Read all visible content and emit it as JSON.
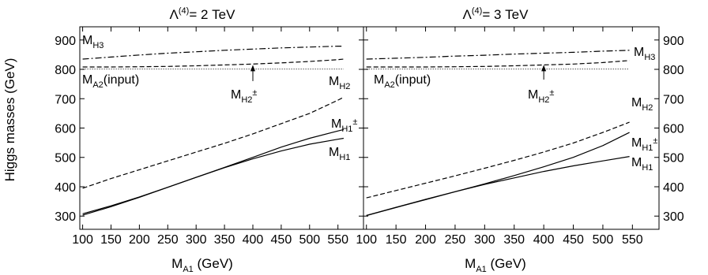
{
  "chart_data": [
    {
      "type": "line",
      "title": "Λ(4)= 2 TeV",
      "title_parts": {
        "symbol": "Λ",
        "superscript": "(4)",
        "value": "= 2 TeV"
      },
      "xlabel": "MA1 (GeV)",
      "xlabel_parts": {
        "main": "M",
        "sub": "A1",
        "rest": " (GeV)"
      },
      "ylabel": "Higgs masses (GeV)",
      "xlim": [
        95,
        595
      ],
      "ylim": [
        255,
        945
      ],
      "xticks": [
        100,
        150,
        200,
        250,
        300,
        350,
        400,
        450,
        500,
        550
      ],
      "yticks": [
        300,
        400,
        500,
        600,
        700,
        800,
        900
      ],
      "y_tick_labels_side": "left",
      "series": [
        {
          "name": "MH3",
          "style": "dashdot",
          "x": [
            100,
            150,
            200,
            250,
            300,
            350,
            400,
            450,
            500,
            550,
            560
          ],
          "y": [
            835,
            842,
            849,
            855,
            860,
            865,
            869,
            873,
            876,
            879,
            879
          ]
        },
        {
          "name": "MA2(input)",
          "style": "dotted",
          "x": [
            100,
            560
          ],
          "y": [
            801,
            801
          ]
        },
        {
          "name": "MH2±",
          "style": "dashed",
          "x": [
            100,
            150,
            200,
            250,
            300,
            350,
            400,
            450,
            500,
            550,
            560
          ],
          "y": [
            808,
            808,
            809,
            810,
            812,
            815,
            818,
            822,
            827,
            833,
            835
          ]
        },
        {
          "name": "MH2",
          "style": "dashed",
          "x": [
            100,
            150,
            200,
            250,
            300,
            350,
            400,
            450,
            500,
            550,
            560
          ],
          "y": [
            395,
            428,
            458,
            488,
            518,
            548,
            580,
            615,
            650,
            695,
            705
          ]
        },
        {
          "name": "MH1±",
          "style": "solid",
          "x": [
            100,
            150,
            200,
            250,
            300,
            350,
            400,
            450,
            500,
            550,
            560
          ],
          "y": [
            308,
            335,
            365,
            398,
            432,
            466,
            500,
            535,
            565,
            590,
            595
          ]
        },
        {
          "name": "MH1",
          "style": "solid",
          "x": [
            100,
            150,
            200,
            250,
            300,
            350,
            400,
            450,
            500,
            550,
            560
          ],
          "y": [
            303,
            332,
            364,
            398,
            432,
            465,
            495,
            522,
            545,
            562,
            565
          ]
        }
      ],
      "annotations": [
        {
          "text": "MH3",
          "main": "M",
          "sub": "H3",
          "sup": ""
        },
        {
          "text": "MA2(input)",
          "main": "M",
          "sub": "A2",
          "rest": "(input)",
          "sup": ""
        },
        {
          "text": "MH2±",
          "main": "M",
          "sub": "H2",
          "sup": "±",
          "arrow_x": 400,
          "arrow_y_from": 760,
          "arrow_y_to": 815
        },
        {
          "text": "MH2",
          "main": "M",
          "sub": "H2",
          "sup": ""
        },
        {
          "text": "MH1±",
          "main": "M",
          "sub": "H1",
          "sup": "±"
        },
        {
          "text": "MH1",
          "main": "M",
          "sub": "H1",
          "sup": ""
        }
      ]
    },
    {
      "type": "line",
      "title": "Λ(4)= 3 TeV",
      "title_parts": {
        "symbol": "Λ",
        "superscript": "(4)",
        "value": "= 3 TeV"
      },
      "xlabel": "MA1 (GeV)",
      "xlabel_parts": {
        "main": "M",
        "sub": "A1",
        "rest": " (GeV)"
      },
      "ylabel": "",
      "xlim": [
        95,
        595
      ],
      "ylim": [
        255,
        945
      ],
      "xticks": [
        100,
        150,
        200,
        250,
        300,
        350,
        400,
        450,
        500,
        550
      ],
      "yticks": [
        300,
        400,
        500,
        600,
        700,
        800,
        900
      ],
      "y_tick_labels_side": "right",
      "series": [
        {
          "name": "MH3",
          "style": "dashdot",
          "x": [
            100,
            150,
            200,
            250,
            300,
            350,
            400,
            450,
            500,
            545
          ],
          "y": [
            835,
            838,
            841,
            845,
            848,
            852,
            855,
            858,
            862,
            865
          ]
        },
        {
          "name": "MA2(input)",
          "style": "dotted",
          "x": [
            100,
            545
          ],
          "y": [
            801,
            801
          ]
        },
        {
          "name": "MH2±",
          "style": "dashed",
          "x": [
            100,
            150,
            200,
            250,
            300,
            350,
            400,
            450,
            500,
            545
          ],
          "y": [
            808,
            808,
            808,
            809,
            810,
            812,
            815,
            818,
            823,
            830
          ]
        },
        {
          "name": "MH2",
          "style": "dashed",
          "x": [
            100,
            150,
            200,
            250,
            300,
            350,
            400,
            450,
            500,
            545
          ],
          "y": [
            362,
            387,
            412,
            437,
            463,
            490,
            518,
            549,
            585,
            620
          ]
        },
        {
          "name": "MH1±",
          "style": "solid",
          "x": [
            100,
            150,
            200,
            250,
            300,
            350,
            400,
            450,
            500,
            545
          ],
          "y": [
            302,
            329,
            356,
            383,
            410,
            438,
            468,
            500,
            540,
            585
          ]
        },
        {
          "name": "MH1",
          "style": "solid",
          "x": [
            100,
            150,
            200,
            250,
            300,
            350,
            400,
            450,
            500,
            545
          ],
          "y": [
            302,
            330,
            357,
            383,
            408,
            430,
            452,
            471,
            488,
            503
          ]
        }
      ],
      "annotations": [
        {
          "text": "MH3",
          "main": "M",
          "sub": "H3",
          "sup": ""
        },
        {
          "text": "MA2(input)",
          "main": "M",
          "sub": "A2",
          "rest": "(input)",
          "sup": ""
        },
        {
          "text": "MH2±",
          "main": "M",
          "sub": "H2",
          "sup": "±",
          "arrow_x": 400,
          "arrow_y_from": 765,
          "arrow_y_to": 815
        },
        {
          "text": "MH2",
          "main": "M",
          "sub": "H2",
          "sup": ""
        },
        {
          "text": "MH1±",
          "main": "M",
          "sub": "H1",
          "sup": "±"
        },
        {
          "text": "MH1",
          "main": "M",
          "sub": "H1",
          "sup": ""
        }
      ]
    }
  ]
}
